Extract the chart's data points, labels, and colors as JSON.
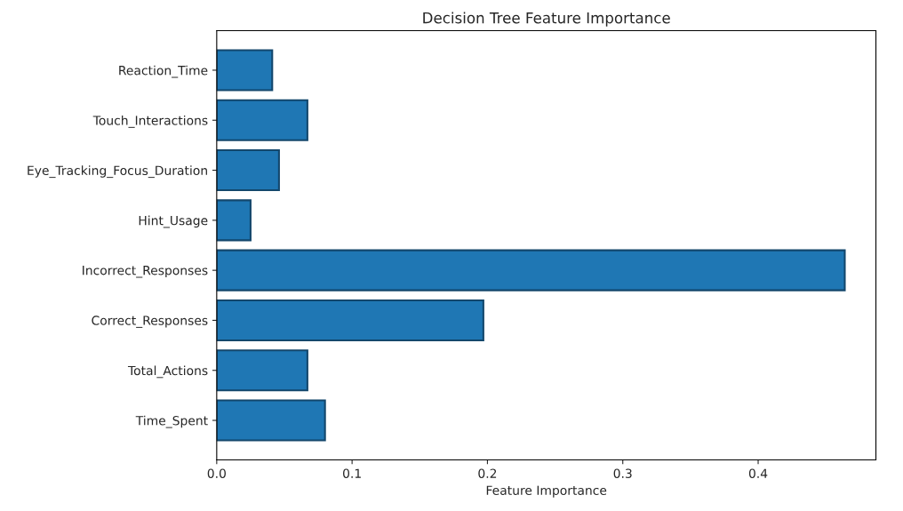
{
  "chart_data": {
    "type": "bar",
    "orientation": "horizontal",
    "title": "Decision Tree Feature Importance",
    "xlabel": "Feature Importance",
    "categories": [
      "Reaction_Time",
      "Touch_Interactions",
      "Eye_Tracking_Focus_Duration",
      "Hint_Usage",
      "Incorrect_Responses",
      "Correct_Responses",
      "Total_Actions",
      "Time_Spent"
    ],
    "values": [
      0.041,
      0.067,
      0.046,
      0.025,
      0.464,
      0.197,
      0.067,
      0.08
    ],
    "color": "#1f77b4",
    "xlim": [
      0,
      0.487
    ],
    "xticks": [
      {
        "value": 0,
        "label": "0.0"
      },
      {
        "value": 0.1,
        "label": "0.1"
      },
      {
        "value": 0.2,
        "label": "0.2"
      },
      {
        "value": 0.3,
        "label": "0.3"
      },
      {
        "value": 0.4,
        "label": "0.4"
      }
    ],
    "grid": false
  }
}
